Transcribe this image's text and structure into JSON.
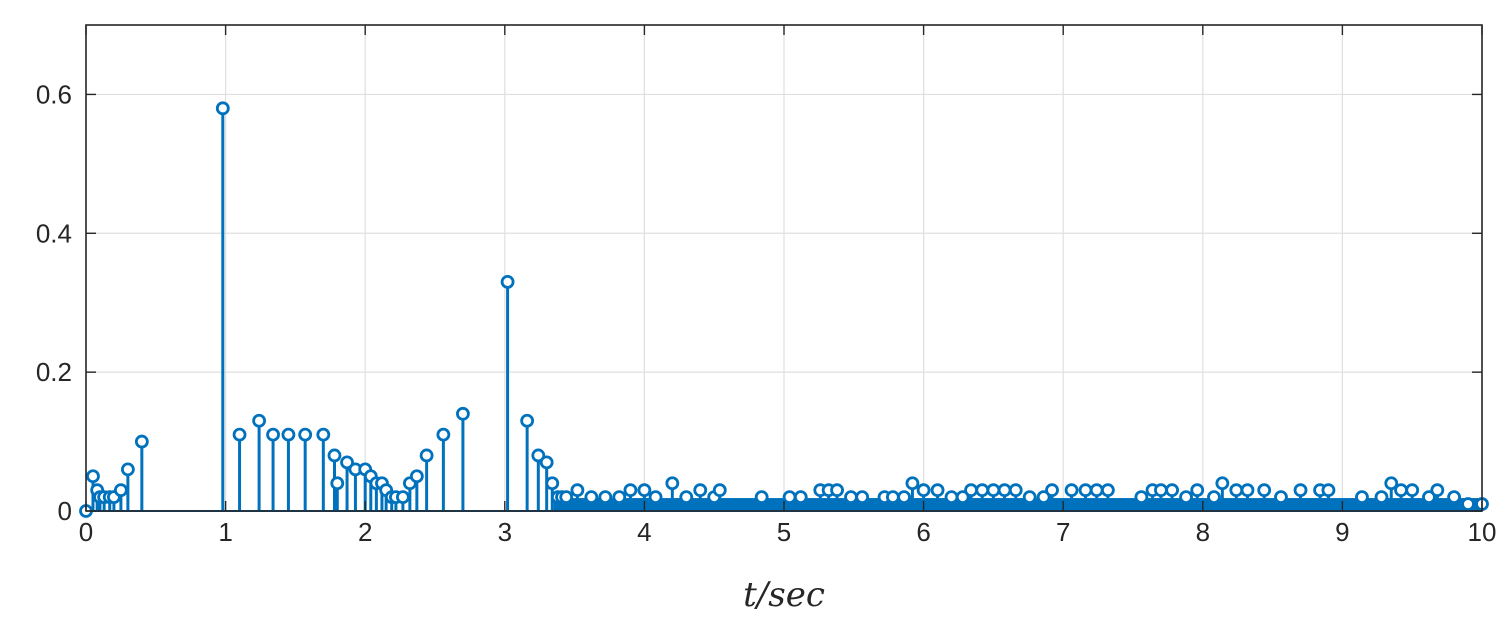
{
  "chart_data": {
    "type": "stem",
    "title": "",
    "xlabel": "t/sec",
    "ylabel": "",
    "xlim": [
      0,
      10
    ],
    "ylim": [
      0,
      0.7
    ],
    "xticks": [
      "0",
      "1",
      "2",
      "3",
      "4",
      "5",
      "6",
      "7",
      "8",
      "9",
      "10"
    ],
    "yticks": [
      "0",
      "0.2",
      "0.4",
      "0.6"
    ],
    "grid": true,
    "color": "#0072BD",
    "series": [
      {
        "x": [
          0,
          0.05,
          0.08,
          0.1,
          0.13,
          0.17,
          0.2,
          0.25,
          0.3,
          0.4,
          0.98,
          1.1,
          1.24,
          1.34,
          1.45,
          1.57,
          1.7,
          1.78,
          1.8,
          1.87,
          1.93,
          2.0,
          2.04,
          2.08,
          2.12,
          2.15,
          2.19,
          2.22,
          2.27,
          2.32,
          2.37,
          2.44,
          2.56,
          2.7,
          3.02,
          3.16,
          3.24,
          3.3,
          3.34,
          3.38,
          3.41,
          3.44,
          3.52,
          3.62,
          3.72,
          3.82,
          3.9,
          4.0,
          4.08,
          4.2,
          4.3,
          4.4,
          4.5,
          4.54,
          4.84,
          5.04,
          5.12,
          5.26,
          5.32,
          5.38,
          5.48,
          5.56,
          5.72,
          5.78,
          5.86,
          5.92,
          6.0,
          6.1,
          6.2,
          6.28,
          6.34,
          6.42,
          6.5,
          6.58,
          6.66,
          6.76,
          6.86,
          6.92,
          7.06,
          7.16,
          7.24,
          7.32,
          7.56,
          7.64,
          7.7,
          7.78,
          7.88,
          7.96,
          8.08,
          8.14,
          8.24,
          8.32,
          8.44,
          8.56,
          8.7,
          8.84,
          8.9,
          9.14,
          9.28,
          9.35,
          9.42,
          9.5,
          9.62,
          9.68,
          9.8,
          9.9,
          10.0
        ],
        "y": [
          0.0,
          0.05,
          0.03,
          0.02,
          0.02,
          0.02,
          0.02,
          0.03,
          0.06,
          0.1,
          0.58,
          0.11,
          0.13,
          0.11,
          0.11,
          0.11,
          0.11,
          0.08,
          0.04,
          0.07,
          0.06,
          0.06,
          0.05,
          0.04,
          0.04,
          0.03,
          0.02,
          0.02,
          0.02,
          0.04,
          0.05,
          0.08,
          0.11,
          0.14,
          0.33,
          0.13,
          0.08,
          0.07,
          0.04,
          0.02,
          0.02,
          0.02,
          0.03,
          0.02,
          0.02,
          0.02,
          0.03,
          0.03,
          0.02,
          0.04,
          0.02,
          0.03,
          0.02,
          0.03,
          0.02,
          0.02,
          0.02,
          0.03,
          0.03,
          0.03,
          0.02,
          0.02,
          0.02,
          0.02,
          0.02,
          0.04,
          0.03,
          0.03,
          0.02,
          0.02,
          0.03,
          0.03,
          0.03,
          0.03,
          0.03,
          0.02,
          0.02,
          0.03,
          0.03,
          0.03,
          0.03,
          0.03,
          0.02,
          0.03,
          0.03,
          0.03,
          0.02,
          0.03,
          0.02,
          0.04,
          0.03,
          0.03,
          0.03,
          0.02,
          0.03,
          0.03,
          0.03,
          0.02,
          0.02,
          0.04,
          0.03,
          0.03,
          0.02,
          0.03,
          0.02,
          0.01,
          0.01
        ]
      }
    ],
    "baseline_floor": {
      "x_range": [
        3.35,
        10.0
      ],
      "y": 0.01
    }
  }
}
